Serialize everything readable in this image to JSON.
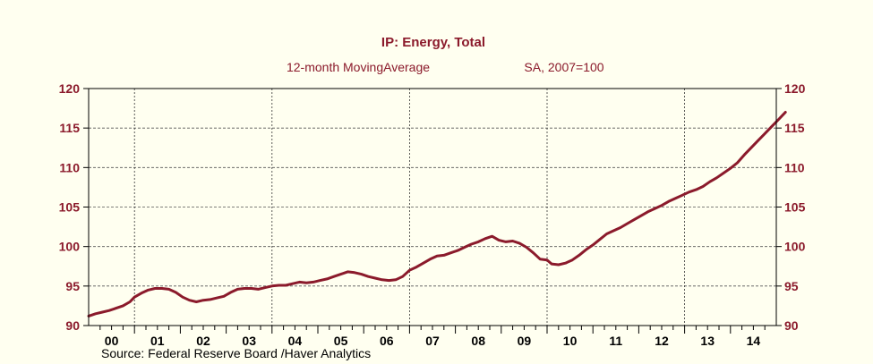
{
  "chart_data": {
    "type": "line",
    "title": "IP: Energy, Total",
    "subtitle_left": "12-month MovingAverage",
    "subtitle_right": "SA, 2007=100",
    "source": "Source:  Federal Reserve Board /Haver Analytics",
    "xlabel": "",
    "ylabel": "",
    "ylim": [
      90,
      120
    ],
    "yticks": [
      90,
      95,
      100,
      105,
      110,
      115,
      120
    ],
    "ytick_labels": [
      "90",
      "95",
      "100",
      "105",
      "110",
      "115",
      "120"
    ],
    "xlim": [
      2000.0,
      2015.0
    ],
    "x_tick_labels": [
      "00",
      "01",
      "02",
      "03",
      "04",
      "05",
      "06",
      "07",
      "08",
      "09",
      "10",
      "11",
      "12",
      "13",
      "14"
    ],
    "vertical_dividers": [
      2001.0,
      2004.0,
      2007.0,
      2010.0,
      2013.0
    ],
    "horizontal_grid": [
      95,
      100,
      105,
      110,
      115
    ],
    "series": [
      {
        "name": "IP: Energy, Total",
        "color": "#8b1a2b",
        "points": [
          [
            2000.0,
            91.2
          ],
          [
            2000.15,
            91.5
          ],
          [
            2000.3,
            91.7
          ],
          [
            2000.45,
            91.9
          ],
          [
            2000.6,
            92.2
          ],
          [
            2000.75,
            92.5
          ],
          [
            2000.9,
            93.0
          ],
          [
            2001.0,
            93.6
          ],
          [
            2001.15,
            94.1
          ],
          [
            2001.3,
            94.5
          ],
          [
            2001.45,
            94.7
          ],
          [
            2001.6,
            94.7
          ],
          [
            2001.75,
            94.6
          ],
          [
            2001.9,
            94.2
          ],
          [
            2002.05,
            93.6
          ],
          [
            2002.2,
            93.2
          ],
          [
            2002.35,
            93.0
          ],
          [
            2002.5,
            93.2
          ],
          [
            2002.65,
            93.3
          ],
          [
            2002.8,
            93.5
          ],
          [
            2002.95,
            93.7
          ],
          [
            2003.1,
            94.2
          ],
          [
            2003.25,
            94.6
          ],
          [
            2003.4,
            94.7
          ],
          [
            2003.55,
            94.7
          ],
          [
            2003.7,
            94.6
          ],
          [
            2003.85,
            94.8
          ],
          [
            2004.0,
            95.0
          ],
          [
            2004.15,
            95.1
          ],
          [
            2004.3,
            95.1
          ],
          [
            2004.45,
            95.3
          ],
          [
            2004.6,
            95.5
          ],
          [
            2004.75,
            95.4
          ],
          [
            2004.9,
            95.5
          ],
          [
            2005.05,
            95.7
          ],
          [
            2005.2,
            95.9
          ],
          [
            2005.35,
            96.2
          ],
          [
            2005.5,
            96.5
          ],
          [
            2005.65,
            96.8
          ],
          [
            2005.8,
            96.7
          ],
          [
            2005.95,
            96.5
          ],
          [
            2006.1,
            96.2
          ],
          [
            2006.25,
            96.0
          ],
          [
            2006.4,
            95.8
          ],
          [
            2006.55,
            95.7
          ],
          [
            2006.7,
            95.8
          ],
          [
            2006.85,
            96.2
          ],
          [
            2007.0,
            97.0
          ],
          [
            2007.15,
            97.4
          ],
          [
            2007.3,
            97.9
          ],
          [
            2007.45,
            98.4
          ],
          [
            2007.6,
            98.8
          ],
          [
            2007.75,
            98.9
          ],
          [
            2007.9,
            99.2
          ],
          [
            2008.05,
            99.5
          ],
          [
            2008.2,
            99.9
          ],
          [
            2008.35,
            100.3
          ],
          [
            2008.5,
            100.6
          ],
          [
            2008.65,
            101.0
          ],
          [
            2008.8,
            101.3
          ],
          [
            2008.95,
            100.8
          ],
          [
            2009.1,
            100.6
          ],
          [
            2009.25,
            100.7
          ],
          [
            2009.4,
            100.4
          ],
          [
            2009.55,
            99.9
          ],
          [
            2009.7,
            99.2
          ],
          [
            2009.85,
            98.4
          ],
          [
            2010.0,
            98.3
          ],
          [
            2010.1,
            97.8
          ],
          [
            2010.25,
            97.7
          ],
          [
            2010.4,
            97.9
          ],
          [
            2010.55,
            98.3
          ],
          [
            2010.7,
            98.9
          ],
          [
            2010.85,
            99.6
          ],
          [
            2011.0,
            100.2
          ],
          [
            2011.15,
            100.9
          ],
          [
            2011.3,
            101.6
          ],
          [
            2011.45,
            102.0
          ],
          [
            2011.6,
            102.4
          ],
          [
            2011.75,
            102.9
          ],
          [
            2011.9,
            103.4
          ],
          [
            2012.05,
            103.9
          ],
          [
            2012.2,
            104.4
          ],
          [
            2012.35,
            104.8
          ],
          [
            2012.5,
            105.2
          ],
          [
            2012.65,
            105.7
          ],
          [
            2012.8,
            106.1
          ],
          [
            2012.95,
            106.5
          ],
          [
            2013.1,
            106.9
          ],
          [
            2013.25,
            107.2
          ],
          [
            2013.4,
            107.6
          ],
          [
            2013.55,
            108.2
          ],
          [
            2013.7,
            108.7
          ],
          [
            2013.85,
            109.3
          ],
          [
            2014.0,
            109.9
          ],
          [
            2014.15,
            110.6
          ],
          [
            2014.3,
            111.6
          ],
          [
            2014.45,
            112.5
          ],
          [
            2014.6,
            113.4
          ],
          [
            2014.75,
            114.3
          ],
          [
            2014.9,
            115.2
          ],
          [
            2015.05,
            116.1
          ],
          [
            2015.2,
            117.0
          ]
        ]
      }
    ]
  }
}
